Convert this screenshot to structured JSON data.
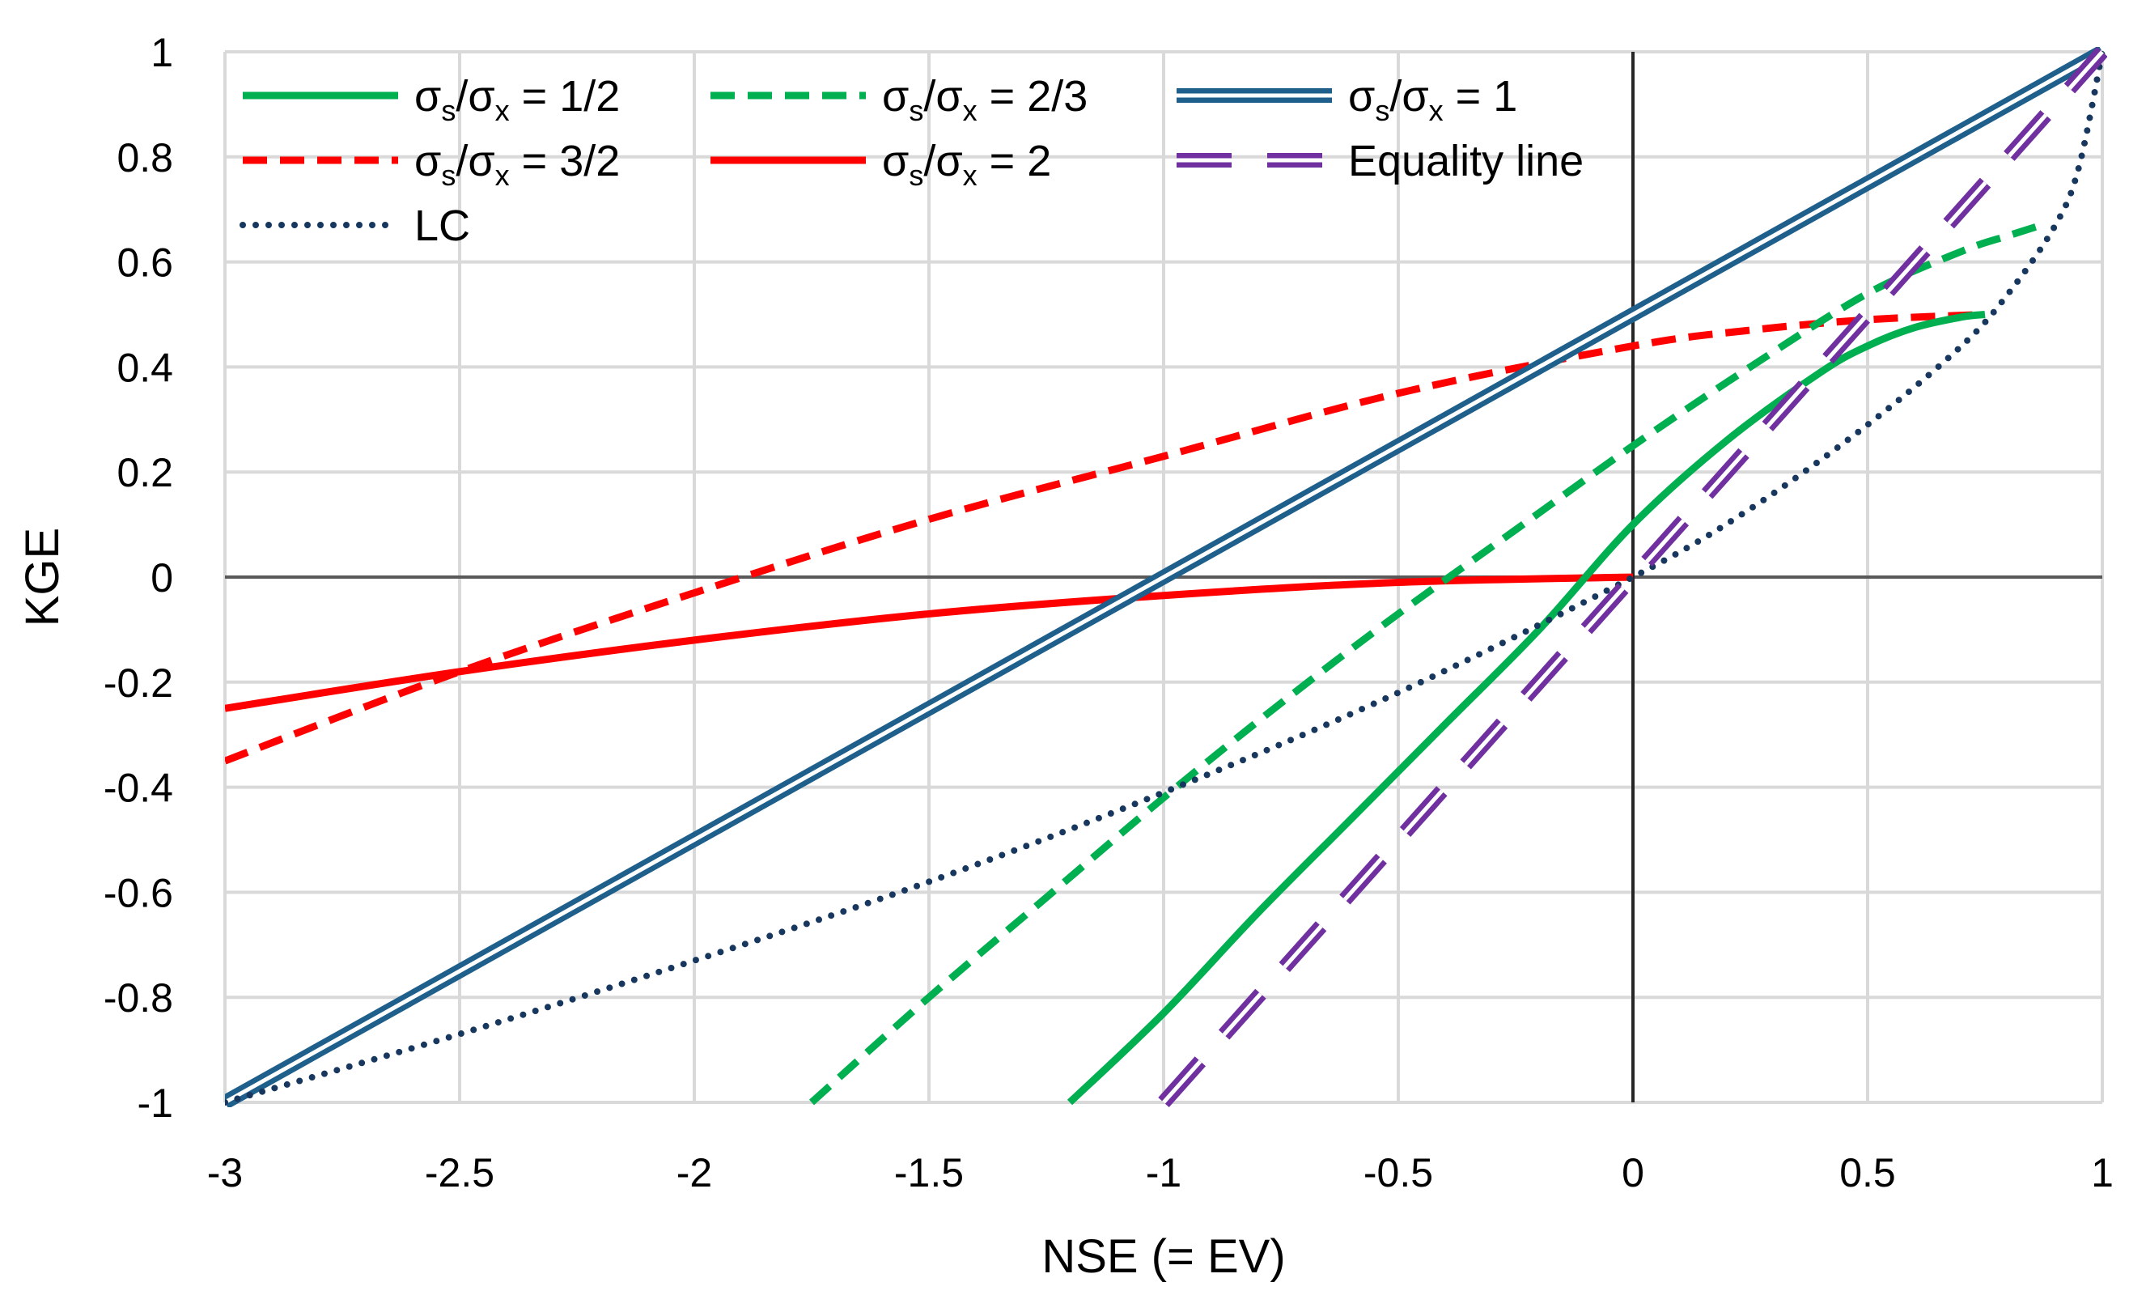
{
  "chart_data": {
    "type": "line",
    "title": "",
    "xlabel": "NSE (= EV)",
    "ylabel": "KGE",
    "xlim": [
      -3,
      1
    ],
    "ylim": [
      -1,
      1
    ],
    "grid": true,
    "legend_position": "top-left",
    "x_ticks": [
      "-3",
      "-2.5",
      "-2",
      "-1.5",
      "-1",
      "-0.5",
      "0",
      "0.5",
      "1"
    ],
    "y_ticks": [
      "1",
      "0.8",
      "0.6",
      "0.4",
      "0.2",
      "0",
      "-0.2",
      "-0.4",
      "-0.6",
      "-0.8",
      "-1"
    ],
    "series": [
      {
        "id": "ratio-1-2",
        "name": "σs/σx = 1/2",
        "legend": {
          "prefix": "σ",
          "sub1": "s",
          "mid": "/σ",
          "sub2": "x",
          "suffix": " = 1/2"
        },
        "color": "#00b050",
        "style": "solid",
        "x": [
          -1.2,
          -1.0,
          -0.8,
          -0.6,
          -0.4,
          -0.2,
          0.0,
          0.2,
          0.4,
          0.5,
          0.6,
          0.7,
          0.75
        ],
        "y": [
          -1.0,
          -0.83,
          -0.64,
          -0.46,
          -0.28,
          -0.1,
          0.1,
          0.26,
          0.39,
          0.44,
          0.475,
          0.495,
          0.5
        ]
      },
      {
        "id": "ratio-2-3",
        "name": "σs/σx = 2/3",
        "legend": {
          "prefix": "σ",
          "sub1": "s",
          "mid": "/σ",
          "sub2": "x",
          "suffix": " = 2/3"
        },
        "color": "#00b050",
        "style": "dashed",
        "x": [
          -1.75,
          -1.5,
          -1.25,
          -1.0,
          -0.75,
          -0.5,
          -0.25,
          0.0,
          0.25,
          0.5,
          0.7,
          0.8,
          0.87
        ],
        "y": [
          -1.0,
          -0.8,
          -0.61,
          -0.42,
          -0.24,
          -0.07,
          0.09,
          0.25,
          0.4,
          0.54,
          0.62,
          0.65,
          0.67
        ]
      },
      {
        "id": "ratio-1",
        "name": "σs/σx = 1",
        "legend": {
          "prefix": "σ",
          "sub1": "s",
          "mid": "/σ",
          "sub2": "x",
          "suffix": " = 1"
        },
        "color": "#1f5f8b",
        "style": "double",
        "x": [
          -3.0,
          1.0
        ],
        "y": [
          -1.0,
          1.0
        ]
      },
      {
        "id": "ratio-3-2",
        "name": "σs/σx = 3/2",
        "legend": {
          "prefix": "σ",
          "sub1": "s",
          "mid": "/σ",
          "sub2": "x",
          "suffix": " = 3/2"
        },
        "color": "#ff0000",
        "style": "dashed",
        "x": [
          -3.0,
          -2.5,
          -2.0,
          -1.5,
          -1.0,
          -0.5,
          0.0,
          0.25,
          0.5,
          0.75
        ],
        "y": [
          -0.35,
          -0.18,
          -0.03,
          0.11,
          0.23,
          0.35,
          0.44,
          0.47,
          0.49,
          0.5
        ]
      },
      {
        "id": "ratio-2",
        "name": "σs/σx = 2",
        "legend": {
          "prefix": "σ",
          "sub1": "s",
          "mid": "/σ",
          "sub2": "x",
          "suffix": " = 2"
        },
        "color": "#ff0000",
        "style": "solid",
        "x": [
          -3.0,
          -2.5,
          -2.0,
          -1.5,
          -1.0,
          -0.5,
          0.0
        ],
        "y": [
          -0.25,
          -0.18,
          -0.12,
          -0.07,
          -0.035,
          -0.01,
          0.0
        ]
      },
      {
        "id": "equality",
        "name": "Equality line",
        "legend": {
          "prefix": "",
          "sub1": "",
          "mid": "",
          "sub2": "",
          "suffix": "Equality line"
        },
        "color": "#7030a0",
        "style": "double-dashed",
        "x": [
          -1.0,
          1.0
        ],
        "y": [
          -1.0,
          1.0
        ]
      },
      {
        "id": "lc",
        "name": "LC",
        "legend": {
          "prefix": "",
          "sub1": "",
          "mid": "",
          "sub2": "",
          "suffix": "LC"
        },
        "color": "#17375e",
        "style": "dotted",
        "x": [
          -3.0,
          -2.5,
          -2.0,
          -1.5,
          -1.0,
          -0.5,
          0.0,
          0.25,
          0.5,
          0.7,
          0.8,
          0.9,
          0.95,
          1.0
        ],
        "y": [
          -1.0,
          -0.87,
          -0.73,
          -0.58,
          -0.41,
          -0.22,
          0.0,
          0.13,
          0.29,
          0.44,
          0.54,
          0.67,
          0.78,
          1.0
        ]
      }
    ]
  }
}
